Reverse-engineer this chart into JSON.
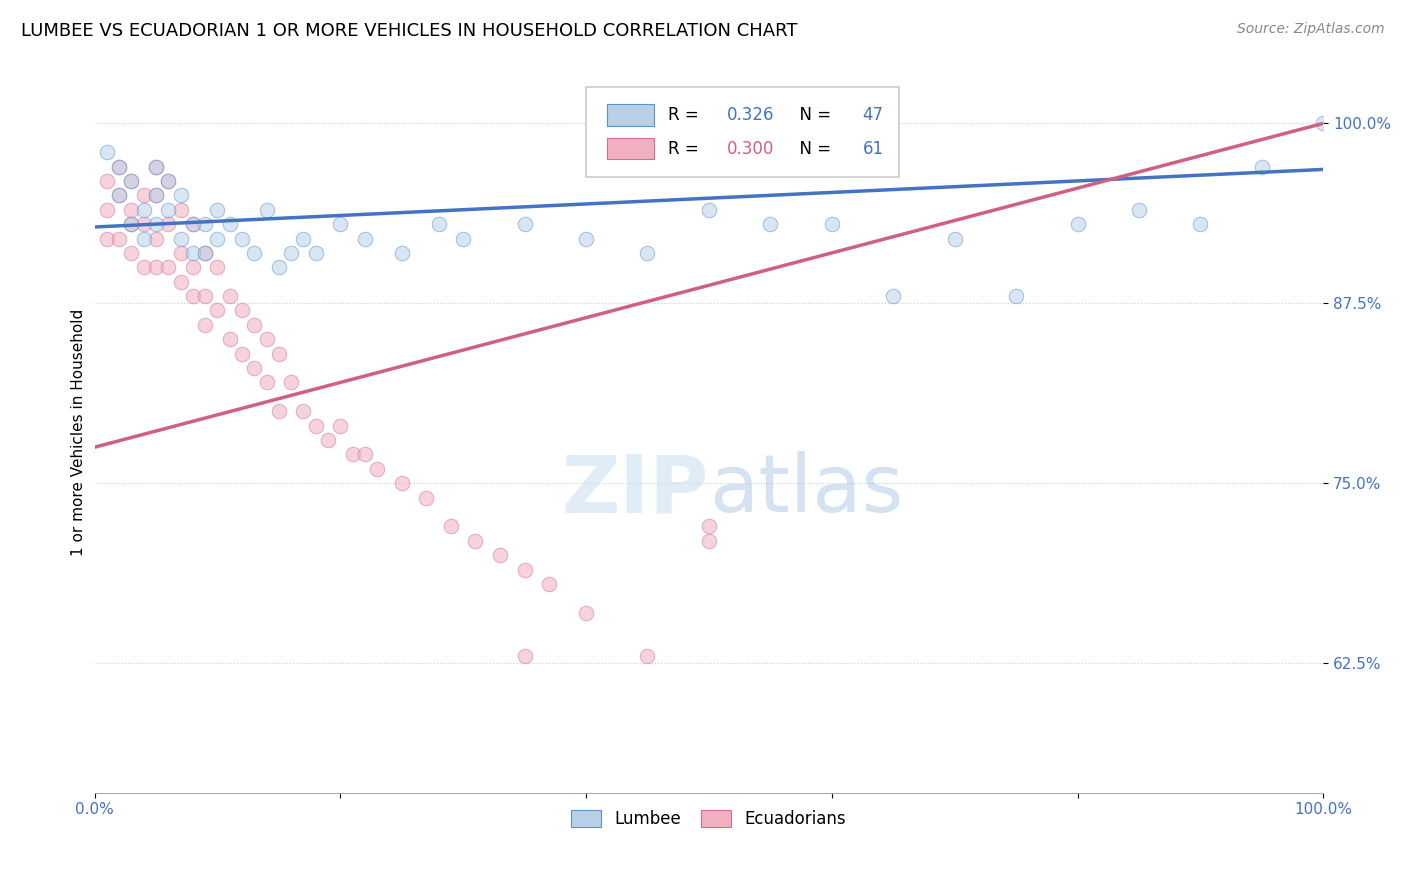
{
  "title": "LUMBEE VS ECUADORIAN 1 OR MORE VEHICLES IN HOUSEHOLD CORRELATION CHART",
  "source": "Source: ZipAtlas.com",
  "ylabel": "1 or more Vehicles in Household",
  "watermark": "ZIPatlas",
  "lumbee": {
    "R": 0.326,
    "N": 47,
    "color": "#b8d0e8",
    "edge_color": "#6090c8",
    "line_color": "#4472c4",
    "x": [
      0.01,
      0.02,
      0.02,
      0.03,
      0.03,
      0.04,
      0.04,
      0.05,
      0.05,
      0.05,
      0.06,
      0.06,
      0.07,
      0.07,
      0.08,
      0.08,
      0.09,
      0.09,
      0.1,
      0.1,
      0.11,
      0.12,
      0.13,
      0.14,
      0.15,
      0.16,
      0.17,
      0.18,
      0.2,
      0.22,
      0.25,
      0.28,
      0.3,
      0.35,
      0.4,
      0.45,
      0.5,
      0.55,
      0.6,
      0.65,
      0.7,
      0.75,
      0.8,
      0.85,
      0.9,
      0.95,
      1.0
    ],
    "y": [
      0.98,
      0.95,
      0.97,
      0.96,
      0.93,
      0.94,
      0.92,
      0.97,
      0.95,
      0.93,
      0.96,
      0.94,
      0.92,
      0.95,
      0.91,
      0.93,
      0.93,
      0.91,
      0.94,
      0.92,
      0.93,
      0.92,
      0.91,
      0.94,
      0.9,
      0.91,
      0.92,
      0.91,
      0.93,
      0.92,
      0.91,
      0.93,
      0.92,
      0.93,
      0.92,
      0.91,
      0.94,
      0.93,
      0.93,
      0.88,
      0.92,
      0.88,
      0.93,
      0.94,
      0.93,
      0.97,
      1.0
    ]
  },
  "ecuadorian": {
    "R": 0.3,
    "N": 61,
    "color": "#f0b0c0",
    "edge_color": "#d07090",
    "line_color": "#d06080",
    "x": [
      0.01,
      0.01,
      0.01,
      0.02,
      0.02,
      0.02,
      0.03,
      0.03,
      0.03,
      0.03,
      0.04,
      0.04,
      0.04,
      0.05,
      0.05,
      0.05,
      0.05,
      0.06,
      0.06,
      0.06,
      0.07,
      0.07,
      0.07,
      0.08,
      0.08,
      0.08,
      0.09,
      0.09,
      0.09,
      0.1,
      0.1,
      0.11,
      0.11,
      0.12,
      0.12,
      0.13,
      0.13,
      0.14,
      0.14,
      0.15,
      0.15,
      0.16,
      0.17,
      0.18,
      0.19,
      0.2,
      0.21,
      0.22,
      0.23,
      0.25,
      0.27,
      0.29,
      0.31,
      0.33,
      0.35,
      0.37,
      0.4,
      0.45,
      0.5,
      0.35,
      0.5
    ],
    "y": [
      0.96,
      0.94,
      0.92,
      0.97,
      0.95,
      0.92,
      0.96,
      0.94,
      0.93,
      0.91,
      0.95,
      0.93,
      0.9,
      0.97,
      0.95,
      0.92,
      0.9,
      0.96,
      0.93,
      0.9,
      0.94,
      0.91,
      0.89,
      0.93,
      0.9,
      0.88,
      0.91,
      0.88,
      0.86,
      0.9,
      0.87,
      0.88,
      0.85,
      0.87,
      0.84,
      0.86,
      0.83,
      0.85,
      0.82,
      0.84,
      0.8,
      0.82,
      0.8,
      0.79,
      0.78,
      0.79,
      0.77,
      0.77,
      0.76,
      0.75,
      0.74,
      0.72,
      0.71,
      0.7,
      0.69,
      0.68,
      0.66,
      0.63,
      0.72,
      0.63,
      0.71
    ]
  },
  "lumbee_line": {
    "x0": 0.0,
    "x1": 1.0,
    "y0": 0.928,
    "y1": 0.968
  },
  "ecuadorian_line": {
    "x0": 0.0,
    "x1": 1.0,
    "y0": 0.775,
    "y1": 1.0
  },
  "xlim": [
    0.0,
    1.0
  ],
  "ylim": [
    0.535,
    1.035
  ],
  "yticks": [
    0.625,
    0.75,
    0.875,
    1.0
  ],
  "ytick_labels": [
    "62.5%",
    "75.0%",
    "87.5%",
    "100.0%"
  ],
  "xticks": [
    0.0,
    0.2,
    0.4,
    0.6,
    0.8,
    1.0
  ],
  "xtick_labels": [
    "0.0%",
    "",
    "",
    "",
    "",
    "100.0%"
  ],
  "grid_color": "#cccccc",
  "background_color": "#ffffff",
  "title_fontsize": 13,
  "axis_label_fontsize": 11,
  "tick_fontsize": 11,
  "scatter_size": 110,
  "scatter_alpha": 0.55,
  "line_width": 2.5
}
